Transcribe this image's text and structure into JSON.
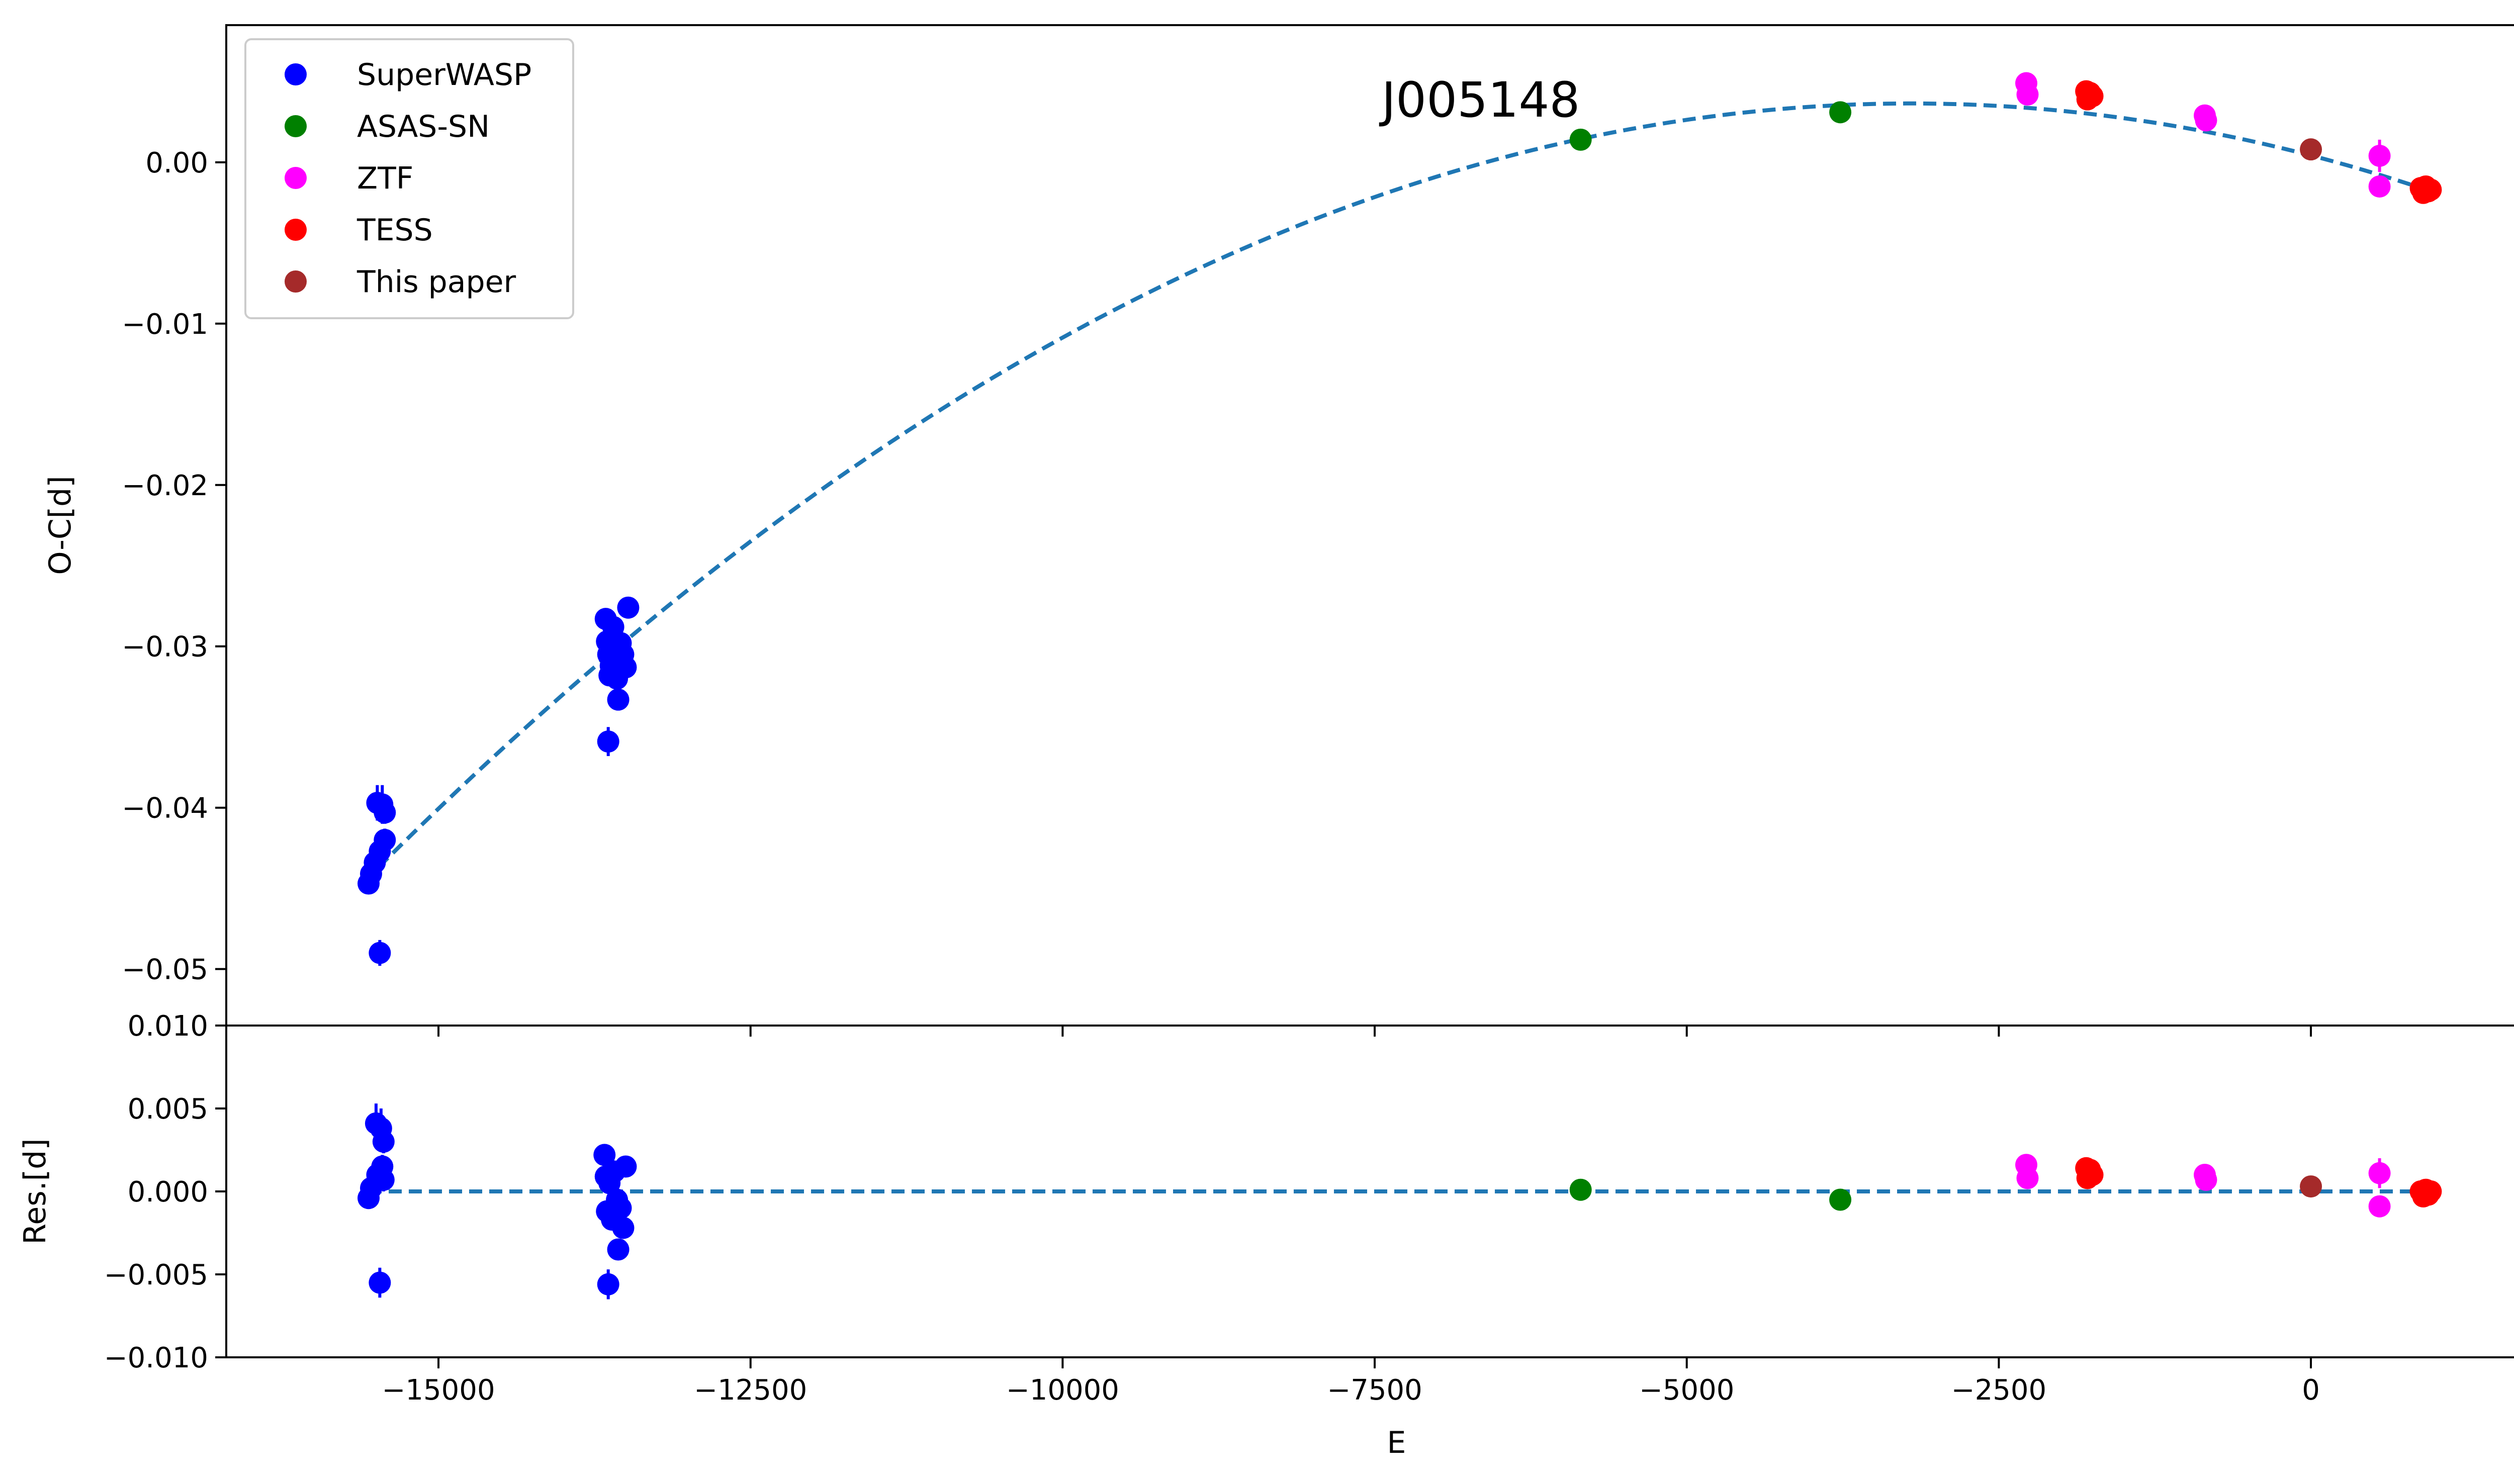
{
  "chart_data": [
    {
      "panel": "top",
      "type": "scatter",
      "title": "J005148",
      "xlabel": "",
      "ylabel": "O-C[d]",
      "xlim": [
        -16700,
        2050
      ],
      "ylim": [
        -0.0535,
        0.0085
      ],
      "yticks": [
        0.0,
        -0.01,
        -0.02,
        -0.03,
        -0.04,
        -0.05
      ],
      "ytick_labels": [
        "0.00",
        "−0.01",
        "−0.02",
        "−0.03",
        "−0.04",
        "−0.05"
      ],
      "fit": {
        "name": "",
        "style": "dashed",
        "color": "#1f77b4",
        "x_start": -15480,
        "x_end": 950,
        "points": [
          {
            "x": -15480,
            "y": -0.044
          },
          {
            "x": -13620,
            "y": -0.03
          },
          {
            "x": -5850,
            "y": 0.0013
          },
          {
            "x": -3250,
            "y": 0.0036
          },
          {
            "x": 950,
            "y": -0.0017
          }
        ]
      },
      "legend": {
        "placement": "upper-left",
        "entries": [
          {
            "label": "SuperWASP",
            "color": "#0000ff"
          },
          {
            "label": "ASAS-SN",
            "color": "#008000"
          },
          {
            "label": "ZTF",
            "color": "#ff00ff"
          },
          {
            "label": "TESS",
            "color": "#ff0000"
          },
          {
            "label": "This paper",
            "color": "#a52a2a"
          }
        ]
      },
      "series": [
        {
          "name": "SuperWASP",
          "color": "#0000ff",
          "points": [
            {
              "x": -15560,
              "y": -0.0447,
              "err": 0.0005
            },
            {
              "x": -15540,
              "y": -0.0441,
              "err": 0.0005
            },
            {
              "x": -15510,
              "y": -0.0434,
              "err": 0.0005
            },
            {
              "x": -15490,
              "y": -0.0397,
              "err": 0.0011
            },
            {
              "x": -15470,
              "y": -0.0427,
              "err": 0.0006
            },
            {
              "x": -15450,
              "y": -0.0398,
              "err": 0.0012
            },
            {
              "x": -15430,
              "y": -0.042,
              "err": 0.0007
            },
            {
              "x": -15430,
              "y": -0.0403,
              "err": 0.0007
            },
            {
              "x": -15470,
              "y": -0.049,
              "err": 0.0008
            },
            {
              "x": -13660,
              "y": -0.0283,
              "err": 0.0005
            },
            {
              "x": -13650,
              "y": -0.0297,
              "err": 0.0005
            },
            {
              "x": -13640,
              "y": -0.0305,
              "err": 0.0005
            },
            {
              "x": -13630,
              "y": -0.0318,
              "err": 0.0005
            },
            {
              "x": -13620,
              "y": -0.0312,
              "err": 0.0005
            },
            {
              "x": -13600,
              "y": -0.0288,
              "err": 0.0005
            },
            {
              "x": -13590,
              "y": -0.0307,
              "err": 0.0005
            },
            {
              "x": -13570,
              "y": -0.032,
              "err": 0.0005
            },
            {
              "x": -13560,
              "y": -0.0333,
              "err": 0.0005
            },
            {
              "x": -13540,
              "y": -0.0298,
              "err": 0.0005
            },
            {
              "x": -13520,
              "y": -0.0305,
              "err": 0.0005
            },
            {
              "x": -13500,
              "y": -0.0313,
              "err": 0.0005
            },
            {
              "x": -13480,
              "y": -0.0276,
              "err": 0.0005
            },
            {
              "x": -13640,
              "y": -0.0359,
              "err": 0.0009
            }
          ]
        },
        {
          "name": "ASAS-SN",
          "color": "#008000",
          "points": [
            {
              "x": -5850,
              "y": 0.0014,
              "err": 0.0003
            },
            {
              "x": -3770,
              "y": 0.0031,
              "err": 0.0003
            }
          ]
        },
        {
          "name": "ZTF",
          "color": "#ff00ff",
          "points": [
            {
              "x": -2280,
              "y": 0.0049,
              "err": 0.0003
            },
            {
              "x": -2270,
              "y": 0.0042,
              "err": 0.0003
            },
            {
              "x": -850,
              "y": 0.0029,
              "err": 0.0003
            },
            {
              "x": -840,
              "y": 0.0026,
              "err": 0.0003
            },
            {
              "x": 550,
              "y": 0.0004,
              "err": 0.001
            },
            {
              "x": 550,
              "y": -0.0015,
              "err": 0.0003
            }
          ]
        },
        {
          "name": "TESS",
          "color": "#ff0000",
          "points": [
            {
              "x": -1800,
              "y": 0.0044,
              "err": 0.0003
            },
            {
              "x": -1790,
              "y": 0.0039,
              "err": 0.0003
            },
            {
              "x": -1770,
              "y": 0.0043,
              "err": 0.0003
            },
            {
              "x": -1750,
              "y": 0.0041,
              "err": 0.0003
            },
            {
              "x": 880,
              "y": -0.0016,
              "err": 0.0003
            },
            {
              "x": 900,
              "y": -0.0019,
              "err": 0.0003
            },
            {
              "x": 920,
              "y": -0.0015,
              "err": 0.0003
            },
            {
              "x": 940,
              "y": -0.0018,
              "err": 0.0003
            },
            {
              "x": 960,
              "y": -0.0017,
              "err": 0.0003
            }
          ]
        },
        {
          "name": "This paper",
          "color": "#a52a2a",
          "points": [
            {
              "x": 0,
              "y": 0.0008,
              "err": 0.0002
            }
          ]
        }
      ]
    },
    {
      "panel": "bottom",
      "type": "scatter",
      "title": "",
      "xlabel": "E",
      "ylabel": "Res.[d]",
      "xlim": [
        -16700,
        2050
      ],
      "ylim": [
        -0.01,
        0.01
      ],
      "xticks": [
        -15000,
        -12500,
        -10000,
        -7500,
        -5000,
        -2500,
        0
      ],
      "xtick_labels": [
        "−15000",
        "−12500",
        "−10000",
        "−7500",
        "−5000",
        "−2500",
        "0"
      ],
      "yticks": [
        0.01,
        0.005,
        0.0,
        -0.005,
        -0.01
      ],
      "ytick_labels": [
        "0.010",
        "0.005",
        "0.000",
        "−0.005",
        "−0.010"
      ],
      "zero_line": {
        "y": 0.0,
        "x_start": -15560,
        "x_end": 960,
        "style": "dashed",
        "color": "#1f77b4"
      },
      "series": [
        {
          "name": "SuperWASP",
          "color": "#0000ff",
          "points": [
            {
              "x": -15560,
              "y": -0.0004,
              "err": 0.0005
            },
            {
              "x": -15540,
              "y": 0.0002,
              "err": 0.0005
            },
            {
              "x": -15500,
              "y": 0.0041,
              "err": 0.0012
            },
            {
              "x": -15490,
              "y": 0.001,
              "err": 0.0007
            },
            {
              "x": -15460,
              "y": 0.0038,
              "err": 0.0012
            },
            {
              "x": -15450,
              "y": 0.0015,
              "err": 0.0007
            },
            {
              "x": -15440,
              "y": 0.003,
              "err": 0.0007
            },
            {
              "x": -15440,
              "y": 0.0007,
              "err": 0.0007
            },
            {
              "x": -15470,
              "y": -0.0055,
              "err": 0.0009
            },
            {
              "x": -13670,
              "y": 0.0022,
              "err": 0.0005
            },
            {
              "x": -13660,
              "y": 0.0009,
              "err": 0.0005
            },
            {
              "x": -13650,
              "y": -0.0012,
              "err": 0.0005
            },
            {
              "x": -13630,
              "y": 0.0005,
              "err": 0.0005
            },
            {
              "x": -13610,
              "y": -0.0017,
              "err": 0.0005
            },
            {
              "x": -13590,
              "y": 0.0012,
              "err": 0.0005
            },
            {
              "x": -13570,
              "y": -0.0005,
              "err": 0.0005
            },
            {
              "x": -13560,
              "y": -0.0035,
              "err": 0.0005
            },
            {
              "x": -13540,
              "y": -0.001,
              "err": 0.0005
            },
            {
              "x": -13520,
              "y": -0.0022,
              "err": 0.0005
            },
            {
              "x": -13500,
              "y": 0.0015,
              "err": 0.0005
            },
            {
              "x": -13640,
              "y": -0.0056,
              "err": 0.0009
            }
          ]
        },
        {
          "name": "ASAS-SN",
          "color": "#008000",
          "points": [
            {
              "x": -5850,
              "y": 0.0001,
              "err": 0.0003
            },
            {
              "x": -3770,
              "y": -0.0005,
              "err": 0.0003
            }
          ]
        },
        {
          "name": "ZTF",
          "color": "#ff00ff",
          "points": [
            {
              "x": -2280,
              "y": 0.0016,
              "err": 0.0003
            },
            {
              "x": -2270,
              "y": 0.0008,
              "err": 0.0003
            },
            {
              "x": -850,
              "y": 0.001,
              "err": 0.0003
            },
            {
              "x": -840,
              "y": 0.0007,
              "err": 0.0003
            },
            {
              "x": 550,
              "y": 0.0011,
              "err": 0.0009
            },
            {
              "x": 550,
              "y": -0.0009,
              "err": 0.0003
            }
          ]
        },
        {
          "name": "TESS",
          "color": "#ff0000",
          "points": [
            {
              "x": -1800,
              "y": 0.0014,
              "err": 0.0003
            },
            {
              "x": -1790,
              "y": 0.0008,
              "err": 0.0003
            },
            {
              "x": -1770,
              "y": 0.0013,
              "err": 0.0003
            },
            {
              "x": -1750,
              "y": 0.001,
              "err": 0.0003
            },
            {
              "x": 880,
              "y": 0.0,
              "err": 0.0003
            },
            {
              "x": 900,
              "y": -0.0003,
              "err": 0.0003
            },
            {
              "x": 920,
              "y": 0.0001,
              "err": 0.0003
            },
            {
              "x": 940,
              "y": -0.0002,
              "err": 0.0003
            },
            {
              "x": 960,
              "y": 0.0,
              "err": 0.0003
            }
          ]
        },
        {
          "name": "This paper",
          "color": "#a52a2a",
          "points": [
            {
              "x": 0,
              "y": 0.0003,
              "err": 0.0002
            }
          ]
        }
      ]
    }
  ]
}
